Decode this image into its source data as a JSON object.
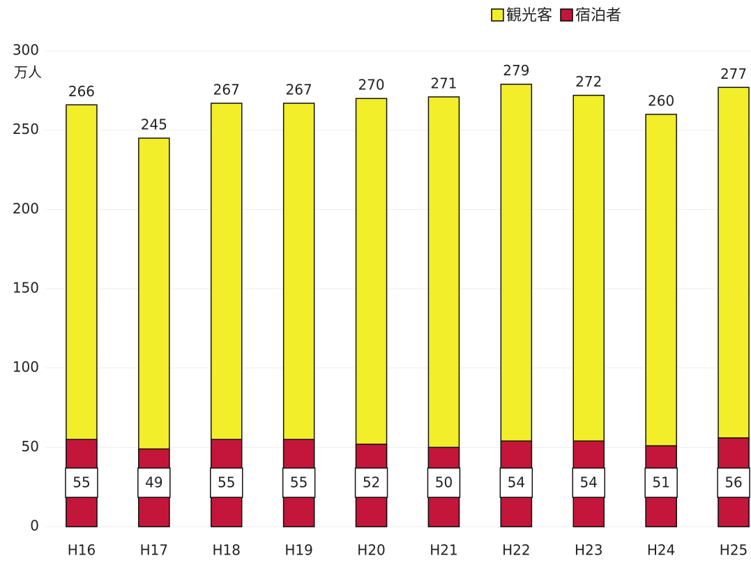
{
  "chart_data": {
    "type": "bar",
    "categories": [
      "H16",
      "H17",
      "H18",
      "H19",
      "H20",
      "H21",
      "H22",
      "H23",
      "H24",
      "H25"
    ],
    "series": [
      {
        "name": "観光客",
        "color": "#f2ee2a",
        "values": [
          266,
          245,
          267,
          267,
          270,
          271,
          279,
          272,
          260,
          277
        ]
      },
      {
        "name": "宿泊者",
        "color": "#c4163a",
        "values": [
          55,
          49,
          55,
          55,
          52,
          50,
          54,
          54,
          51,
          56
        ]
      }
    ],
    "ylabel": "万人",
    "ylim": [
      0,
      300
    ],
    "yticks": [
      0,
      50,
      100,
      150,
      200,
      250,
      300
    ],
    "grid": true,
    "legend": "top-right"
  }
}
